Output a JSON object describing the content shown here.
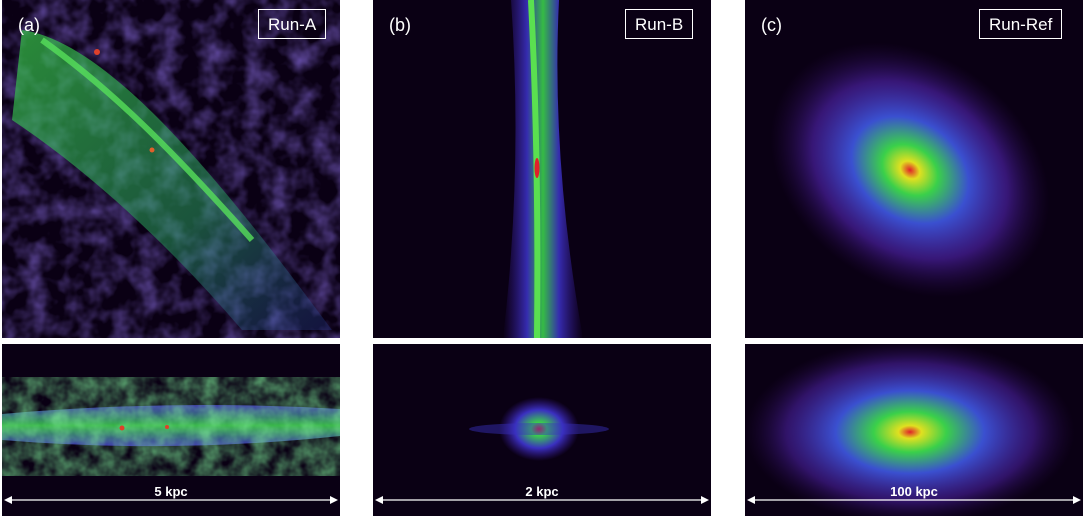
{
  "panels": [
    {
      "tag": "(a)",
      "run": "Run-A",
      "scale": "5 kpc"
    },
    {
      "tag": "(b)",
      "run": "Run-B",
      "scale": "2 kpc"
    },
    {
      "tag": "(c)",
      "run": "Run-Ref",
      "scale": "100 kpc"
    }
  ],
  "colors": {
    "background": "#0a0014",
    "low": "#3a1a9c",
    "mid": "#2ecc40",
    "high": "#e0202a"
  }
}
